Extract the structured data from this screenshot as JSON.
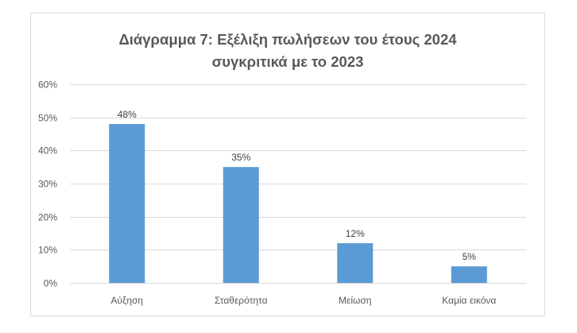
{
  "chart_data": {
    "type": "bar",
    "title_lines": [
      "Διάγραμμα 7: Εξέλιξη πωλήσεων του έτους 2024",
      "συγκριτικά με το 2023"
    ],
    "categories": [
      "Αύξηση",
      "Σταθερότητα",
      "Μείωση",
      "Καμία εικόνα"
    ],
    "values": [
      48,
      35,
      12,
      5
    ],
    "data_labels": [
      "48%",
      "35%",
      "12%",
      "5%"
    ],
    "y_ticks": [
      "0%",
      "10%",
      "20%",
      "30%",
      "40%",
      "50%",
      "60%"
    ],
    "ylim": [
      0,
      60
    ],
    "grid": true,
    "legend": "none",
    "bar_color": "#5b9bd5",
    "grid_color": "#d9d9d9"
  }
}
